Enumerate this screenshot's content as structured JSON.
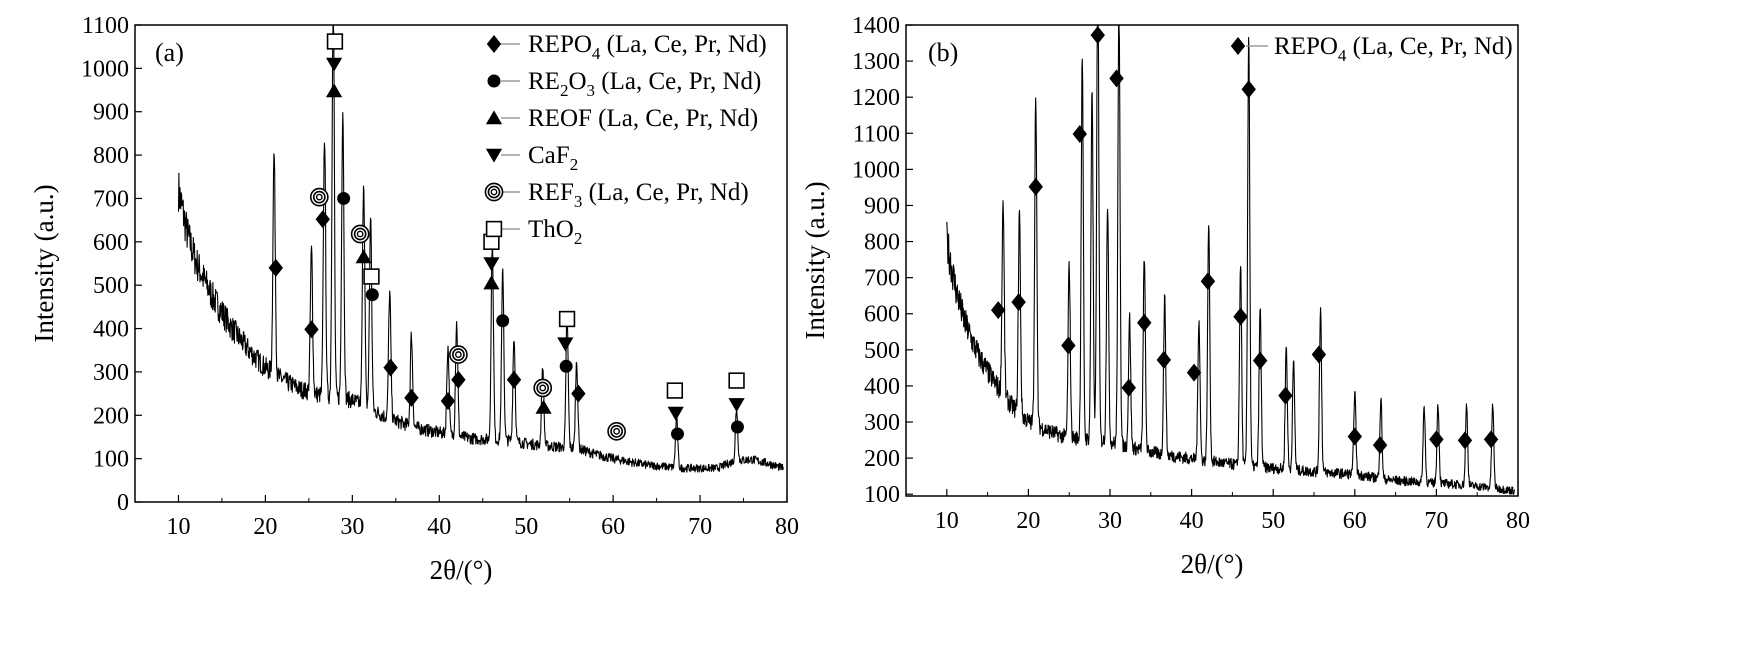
{
  "colors": {
    "ink": "#000000",
    "background": "#ffffff"
  },
  "chart_data": [
    {
      "type": "line",
      "panel_label": "(a)",
      "xlabel": "2θ/(°)",
      "ylabel": "Intensity (a.u.)",
      "xlim": [
        5,
        80
      ],
      "ylim": [
        0,
        1100
      ],
      "x_ticks": [
        10,
        20,
        30,
        40,
        50,
        60,
        70,
        80
      ],
      "y_ticks": [
        0,
        100,
        200,
        300,
        400,
        500,
        600,
        700,
        800,
        900,
        1000,
        1100
      ],
      "legend_position": "top-right",
      "legend": [
        {
          "marker": "diamond",
          "main": "REPO",
          "sub": "4",
          "main2": "",
          "sub2": "",
          "rest": " (La, Ce, Pr, Nd)"
        },
        {
          "marker": "circle",
          "main": "RE",
          "sub": "2",
          "main2": "O",
          "sub2": "3",
          "rest": " (La, Ce, Pr, Nd)"
        },
        {
          "marker": "triangle-up",
          "main": "REOF",
          "sub": "",
          "main2": "",
          "sub2": "",
          "rest": " (La, Ce, Pr, Nd)"
        },
        {
          "marker": "triangle-down",
          "main": "CaF",
          "sub": "2",
          "main2": "",
          "sub2": "",
          "rest": ""
        },
        {
          "marker": "double-circle",
          "main": "REF",
          "sub": "3",
          "main2": "",
          "sub2": "",
          "rest": " (La, Ce, Pr, Nd)"
        },
        {
          "marker": "square",
          "main": "ThO",
          "sub": "2",
          "main2": "",
          "sub2": "",
          "rest": ""
        }
      ],
      "background_curve": [
        [
          10,
          720
        ],
        [
          11,
          620
        ],
        [
          12,
          555
        ],
        [
          13,
          510
        ],
        [
          14,
          470
        ],
        [
          15,
          438
        ],
        [
          16,
          405
        ],
        [
          17,
          378
        ],
        [
          18,
          352
        ],
        [
          19,
          330
        ],
        [
          20,
          310
        ],
        [
          22,
          282
        ],
        [
          24,
          260
        ],
        [
          26,
          248
        ],
        [
          30,
          235
        ],
        [
          32,
          215
        ],
        [
          34,
          195
        ],
        [
          36,
          180
        ],
        [
          38,
          168
        ],
        [
          40,
          160
        ],
        [
          42,
          152
        ],
        [
          44,
          146
        ],
        [
          48,
          142
        ],
        [
          50,
          135
        ],
        [
          52,
          130
        ],
        [
          56,
          123
        ],
        [
          58,
          110
        ],
        [
          60,
          100
        ],
        [
          64,
          85
        ],
        [
          68,
          78
        ],
        [
          72,
          78
        ],
        [
          74,
          95
        ],
        [
          76,
          98
        ],
        [
          78,
          88
        ],
        [
          80,
          75
        ]
      ],
      "peaks": [
        {
          "x": 21.0,
          "height": 510
        },
        {
          "x": 25.3,
          "height": 330
        },
        {
          "x": 26.8,
          "height": 600
        },
        {
          "x": 27.8,
          "height": 925
        },
        {
          "x": 28.9,
          "height": 665
        },
        {
          "x": 31.3,
          "height": 520
        },
        {
          "x": 32.1,
          "height": 450
        },
        {
          "x": 34.3,
          "height": 290
        },
        {
          "x": 36.8,
          "height": 210
        },
        {
          "x": 41.0,
          "height": 200
        },
        {
          "x": 42.0,
          "height": 260
        },
        {
          "x": 46.1,
          "height": 450
        },
        {
          "x": 47.3,
          "height": 390
        },
        {
          "x": 48.6,
          "height": 240
        },
        {
          "x": 51.9,
          "height": 180
        },
        {
          "x": 54.7,
          "height": 300
        },
        {
          "x": 55.8,
          "height": 200
        },
        {
          "x": 67.3,
          "height": 115
        },
        {
          "x": 74.2,
          "height": 120
        }
      ],
      "markers": [
        {
          "type": "diamond",
          "x": 21.2,
          "y": 540
        },
        {
          "type": "diamond",
          "x": 25.3,
          "y": 398
        },
        {
          "type": "diamond",
          "x": 26.6,
          "y": 652
        },
        {
          "type": "diamond",
          "x": 34.4,
          "y": 310
        },
        {
          "type": "diamond",
          "x": 36.8,
          "y": 240
        },
        {
          "type": "diamond",
          "x": 41.0,
          "y": 233
        },
        {
          "type": "diamond",
          "x": 42.2,
          "y": 282
        },
        {
          "type": "diamond",
          "x": 48.6,
          "y": 282
        },
        {
          "type": "diamond",
          "x": 56.0,
          "y": 250
        },
        {
          "type": "circle",
          "x": 29.0,
          "y": 700
        },
        {
          "type": "circle",
          "x": 32.3,
          "y": 478
        },
        {
          "type": "circle",
          "x": 47.3,
          "y": 418
        },
        {
          "type": "circle",
          "x": 54.6,
          "y": 313
        },
        {
          "type": "circle",
          "x": 67.4,
          "y": 157
        },
        {
          "type": "circle",
          "x": 74.3,
          "y": 173
        },
        {
          "type": "triangle-up",
          "x": 27.9,
          "y": 948
        },
        {
          "type": "triangle-up",
          "x": 31.3,
          "y": 565
        },
        {
          "type": "triangle-up",
          "x": 46.0,
          "y": 505
        },
        {
          "type": "triangle-up",
          "x": 52.0,
          "y": 218
        },
        {
          "type": "triangle-down",
          "x": 27.9,
          "y": 1010
        },
        {
          "type": "triangle-down",
          "x": 46.0,
          "y": 550
        },
        {
          "type": "triangle-down",
          "x": 54.5,
          "y": 365
        },
        {
          "type": "triangle-down",
          "x": 67.2,
          "y": 205
        },
        {
          "type": "triangle-down",
          "x": 74.2,
          "y": 225
        },
        {
          "type": "double-circle",
          "x": 26.2,
          "y": 703
        },
        {
          "type": "double-circle",
          "x": 30.9,
          "y": 618
        },
        {
          "type": "double-circle",
          "x": 42.2,
          "y": 340
        },
        {
          "type": "double-circle",
          "x": 51.9,
          "y": 263
        },
        {
          "type": "double-circle",
          "x": 60.4,
          "y": 163
        },
        {
          "type": "square",
          "x": 28.0,
          "y": 1062
        },
        {
          "type": "square",
          "x": 32.2,
          "y": 520
        },
        {
          "type": "square",
          "x": 46.0,
          "y": 600
        },
        {
          "type": "square",
          "x": 54.7,
          "y": 422
        },
        {
          "type": "square",
          "x": 67.1,
          "y": 257
        },
        {
          "type": "square",
          "x": 74.2,
          "y": 280
        }
      ]
    },
    {
      "type": "line",
      "panel_label": "(b)",
      "xlabel": "2θ/(°)",
      "ylabel": "Intensity (a.u.)",
      "xlim": [
        5,
        80
      ],
      "ylim": [
        95,
        1400
      ],
      "x_ticks": [
        10,
        20,
        30,
        40,
        50,
        60,
        70,
        80
      ],
      "y_ticks": [
        100,
        200,
        300,
        400,
        500,
        600,
        700,
        800,
        900,
        1000,
        1100,
        1200,
        1300,
        1400
      ],
      "legend_position": "top-right",
      "legend": [
        {
          "marker": "diamond",
          "main": "REPO",
          "sub": "4",
          "main2": "",
          "sub2": "",
          "rest": " (La, Ce, Pr, Nd)"
        }
      ],
      "background_curve": [
        [
          10,
          800
        ],
        [
          11,
          680
        ],
        [
          12,
          590
        ],
        [
          13,
          530
        ],
        [
          14,
          480
        ],
        [
          15,
          440
        ],
        [
          16,
          405
        ],
        [
          17,
          372
        ],
        [
          18,
          345
        ],
        [
          19,
          322
        ],
        [
          20,
          302
        ],
        [
          22,
          280
        ],
        [
          24,
          262
        ],
        [
          26,
          255
        ],
        [
          28,
          250
        ],
        [
          30,
          245
        ],
        [
          32,
          232
        ],
        [
          34,
          222
        ],
        [
          36,
          212
        ],
        [
          38,
          205
        ],
        [
          40,
          198
        ],
        [
          42,
          192
        ],
        [
          44,
          186
        ],
        [
          46,
          180
        ],
        [
          48,
          176
        ],
        [
          50,
          172
        ],
        [
          54,
          164
        ],
        [
          58,
          158
        ],
        [
          60,
          155
        ],
        [
          64,
          140
        ],
        [
          68,
          133
        ],
        [
          72,
          128
        ],
        [
          76,
          120
        ],
        [
          80,
          108
        ]
      ],
      "peaks": [
        {
          "x": 16.9,
          "height": 540
        },
        {
          "x": 18.9,
          "height": 560
        },
        {
          "x": 20.9,
          "height": 920
        },
        {
          "x": 25.0,
          "height": 480
        },
        {
          "x": 26.6,
          "height": 1060
        },
        {
          "x": 27.8,
          "height": 980
        },
        {
          "x": 28.5,
          "height": 1335
        },
        {
          "x": 29.7,
          "height": 660
        },
        {
          "x": 31.1,
          "height": 1220
        },
        {
          "x": 32.4,
          "height": 360
        },
        {
          "x": 34.2,
          "height": 540
        },
        {
          "x": 36.7,
          "height": 435
        },
        {
          "x": 40.9,
          "height": 390
        },
        {
          "x": 42.1,
          "height": 660
        },
        {
          "x": 46.0,
          "height": 560
        },
        {
          "x": 47.0,
          "height": 1200
        },
        {
          "x": 48.4,
          "height": 440
        },
        {
          "x": 51.6,
          "height": 340
        },
        {
          "x": 52.5,
          "height": 300
        },
        {
          "x": 55.8,
          "height": 455
        },
        {
          "x": 60.0,
          "height": 230
        },
        {
          "x": 63.2,
          "height": 220
        },
        {
          "x": 68.5,
          "height": 210
        },
        {
          "x": 70.2,
          "height": 220
        },
        {
          "x": 73.7,
          "height": 225
        },
        {
          "x": 76.9,
          "height": 230
        }
      ],
      "markers": [
        {
          "type": "diamond",
          "x": 16.3,
          "y": 610
        },
        {
          "type": "diamond",
          "x": 18.8,
          "y": 632
        },
        {
          "type": "diamond",
          "x": 20.9,
          "y": 952
        },
        {
          "type": "diamond",
          "x": 24.9,
          "y": 512
        },
        {
          "type": "diamond",
          "x": 26.3,
          "y": 1098
        },
        {
          "type": "diamond",
          "x": 28.5,
          "y": 1372
        },
        {
          "type": "diamond",
          "x": 30.8,
          "y": 1252
        },
        {
          "type": "diamond",
          "x": 32.3,
          "y": 395
        },
        {
          "type": "diamond",
          "x": 34.2,
          "y": 575
        },
        {
          "type": "diamond",
          "x": 36.6,
          "y": 472
        },
        {
          "type": "diamond",
          "x": 40.3,
          "y": 437
        },
        {
          "type": "diamond",
          "x": 42.0,
          "y": 690
        },
        {
          "type": "diamond",
          "x": 46.0,
          "y": 592
        },
        {
          "type": "diamond",
          "x": 47.0,
          "y": 1222
        },
        {
          "type": "diamond",
          "x": 48.4,
          "y": 470
        },
        {
          "type": "diamond",
          "x": 51.5,
          "y": 373
        },
        {
          "type": "diamond",
          "x": 55.6,
          "y": 487
        },
        {
          "type": "diamond",
          "x": 60.0,
          "y": 260
        },
        {
          "type": "diamond",
          "x": 63.1,
          "y": 236
        },
        {
          "type": "diamond",
          "x": 70.0,
          "y": 252
        },
        {
          "type": "diamond",
          "x": 73.5,
          "y": 249
        },
        {
          "type": "diamond",
          "x": 76.7,
          "y": 252
        }
      ]
    }
  ]
}
